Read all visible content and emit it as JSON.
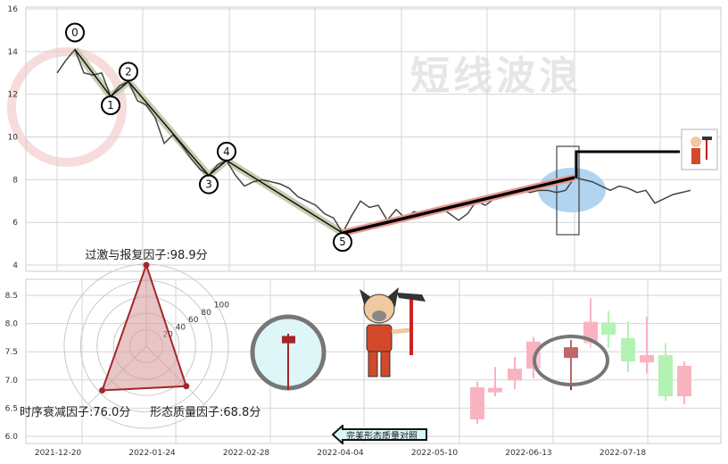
{
  "chart_data": [
    {
      "type": "line",
      "yticks": [
        16,
        14,
        12,
        10,
        8,
        6,
        4
      ],
      "ylim": [
        4,
        16
      ],
      "grid": true,
      "watermark": "短线波浪",
      "price": [
        13.0,
        13.6,
        14.1,
        13.0,
        12.9,
        13.0,
        11.9,
        12.4,
        12.6,
        11.7,
        11.5,
        10.9,
        9.7,
        10.1,
        9.6,
        9.0,
        8.5,
        8.2,
        8.7,
        8.9,
        8.2,
        7.7,
        7.9,
        8.0,
        7.9,
        7.8,
        7.6,
        7.2,
        7.0,
        6.8,
        6.4,
        6.2,
        5.5,
        6.3,
        7.0,
        6.7,
        6.8,
        6.1,
        6.6,
        6.2,
        6.5,
        6.4,
        6.5,
        6.7,
        6.4,
        6.1,
        6.4,
        7.0,
        6.8,
        7.1,
        7.2,
        7.4,
        7.5,
        7.4,
        7.5,
        7.5,
        7.4,
        7.5,
        8.1,
        8.0,
        7.9,
        7.7,
        7.5,
        7.7,
        7.6,
        7.4,
        7.5,
        6.9,
        7.1,
        7.3,
        7.4,
        7.5
      ],
      "waves": [
        {
          "label": "0",
          "index": 2,
          "value": 14.1
        },
        {
          "label": "1",
          "index": 6,
          "value": 11.9
        },
        {
          "label": "2",
          "index": 8,
          "value": 12.6
        },
        {
          "label": "3",
          "index": 17,
          "value": 8.2
        },
        {
          "label": "4",
          "index": 19,
          "value": 8.9
        },
        {
          "label": "5",
          "index": 32,
          "value": 5.5
        }
      ],
      "rebound": {
        "from_index": 32,
        "from_value": 5.5,
        "to_index": 58,
        "to_value": 8.1
      },
      "colors": {
        "price": "#444444",
        "down_wave_band": "#c5cfb0",
        "rebound_band": "#e89a93",
        "highlight": "#a9cfee"
      }
    },
    {
      "type": "candlestick",
      "yticks": [
        "8.5",
        "8.0",
        "7.5",
        "7.0",
        "6.5",
        "6.0"
      ],
      "ylim": [
        6.0,
        8.5
      ],
      "xticks": [
        "2021-12-20",
        "2022-01-24",
        "2022-02-28",
        "2022-04-04",
        "2022-05-10",
        "2022-06-13",
        "2022-07-18"
      ],
      "candles": [
        {
          "open": 6.3,
          "close": 6.87,
          "high": 6.97,
          "low": 6.22,
          "kind": "up"
        },
        {
          "open": 6.78,
          "close": 6.86,
          "high": 7.23,
          "low": 6.71,
          "kind": "up"
        },
        {
          "open": 6.99,
          "close": 7.2,
          "high": 7.41,
          "low": 6.84,
          "kind": "up"
        },
        {
          "open": 7.2,
          "close": 7.68,
          "high": 7.76,
          "low": 7.03,
          "kind": "up"
        },
        {
          "open": 7.39,
          "close": 7.58,
          "high": 7.71,
          "low": 6.82,
          "kind": "highlight"
        },
        {
          "open": 7.65,
          "close": 8.03,
          "high": 8.45,
          "low": 7.57,
          "kind": "up"
        },
        {
          "open": 8.02,
          "close": 7.8,
          "high": 8.22,
          "low": 7.57,
          "kind": "down"
        },
        {
          "open": 7.74,
          "close": 7.33,
          "high": 8.04,
          "low": 7.14,
          "kind": "down"
        },
        {
          "open": 7.31,
          "close": 7.44,
          "high": 8.12,
          "low": 7.12,
          "kind": "up"
        },
        {
          "open": 7.44,
          "close": 6.71,
          "high": 7.65,
          "low": 6.63,
          "kind": "down"
        },
        {
          "open": 6.71,
          "close": 7.25,
          "high": 7.33,
          "low": 6.57,
          "kind": "up"
        }
      ],
      "reference_candle": {
        "open": 7.65,
        "close": 7.78,
        "high": 7.82,
        "low": 6.82
      },
      "colors": {
        "up": "#f9b3c0",
        "down": "#b4f2b4",
        "highlight": "#a5262a"
      }
    },
    {
      "type": "radar",
      "rings": [
        "20",
        "40",
        "60",
        "80",
        "100"
      ],
      "max": 100,
      "indicators": [
        {
          "name": "过激与报复因子",
          "value": 98.9,
          "label": "过激与报复因子:98.9分"
        },
        {
          "name": "时序衰减因子",
          "value": 76.0,
          "label": "时序衰减因子:76.0分"
        },
        {
          "name": "形态质量因子",
          "value": 68.8,
          "label": "形态质量因子:68.8分"
        }
      ],
      "colors": {
        "line": "#a5262a",
        "fill": "#d9a0a0"
      }
    }
  ],
  "button": {
    "label": "完美形态质量对照"
  }
}
